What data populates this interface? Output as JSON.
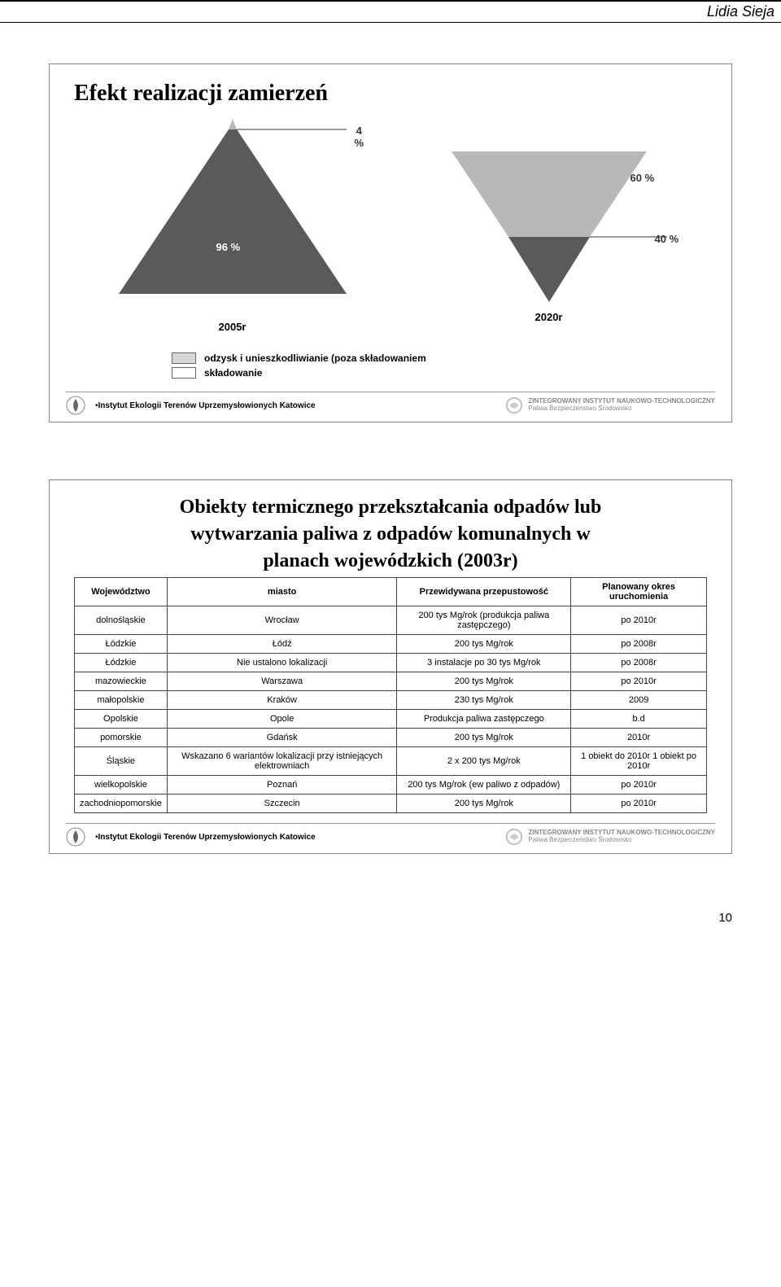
{
  "header": {
    "author": "Lidia Sieja"
  },
  "slide1": {
    "title": "Efekt realizacji zamierzeń",
    "triangles": {
      "left": {
        "year": "2005r",
        "top_pct": "4 %",
        "bottom_pct": "96 %",
        "top_color": "#b8b8b8",
        "bottom_color": "#5a5a5a"
      },
      "right": {
        "year": "2020r",
        "top_pct": "60 %",
        "bottom_pct": "40 %",
        "top_color": "#b8b8b8",
        "bottom_color": "#5a5a5a"
      }
    },
    "legend": {
      "item1": {
        "swatch_color": "#d8d8d8",
        "label": "odzysk i unieszkodliwianie (poza składowaniem"
      },
      "item2": {
        "swatch_color": "#ffffff",
        "label": "składowanie"
      }
    }
  },
  "slide2": {
    "title_line1": "Obiekty termicznego przekształcania odpadów lub",
    "title_line2": "wytwarzania paliwa z odpadów komunalnych w",
    "title_line3": "planach wojewódzkich (2003r)",
    "columns": [
      "Województwo",
      "miasto",
      "Przewidywana przepustowość",
      "Planowany okres uruchomienia"
    ],
    "rows": [
      [
        "dolnośląskie",
        "Wrocław",
        "200 tys Mg/rok (produkcja paliwa zastępczego)",
        "po 2010r"
      ],
      [
        "Łódzkie",
        "Łódź",
        "200 tys Mg/rok",
        "po 2008r"
      ],
      [
        "Łódzkie",
        "Nie ustalono lokalizacji",
        "3 instalacje po 30 tys Mg/rok",
        "po 2008r"
      ],
      [
        "mazowieckie",
        "Warszawa",
        "200 tys Mg/rok",
        "po 2010r"
      ],
      [
        "małopolskie",
        "Kraków",
        "230 tys Mg/rok",
        "2009"
      ],
      [
        "Opolskie",
        "Opole",
        "Produkcja paliwa zastępczego",
        "b.d"
      ],
      [
        "pomorskie",
        "Gdańsk",
        "200 tys Mg/rok",
        "2010r"
      ],
      [
        "Śląskie",
        "Wskazano 6 wariantów lokalizacji przy istniejących elektrowniach",
        "2 x 200 tys Mg/rok",
        "1 obiekt do 2010r 1 obiekt po 2010r"
      ],
      [
        "wielkopolskie",
        "Poznań",
        "200 tys Mg/rok (ew paliwo z odpadów)",
        "po 2010r"
      ],
      [
        "zachodniopomorskie",
        "Szczecin",
        "200 tys Mg/rok",
        "po 2010r"
      ]
    ]
  },
  "footer": {
    "left_text": "Instytut Ekologii Terenów Uprzemysłowionych Katowice",
    "right_line1": "ZINTEGROWANY INSTYTUT NAUKOWO-TECHNOLOGICZNY",
    "right_line2": "Paliwa Bezpieczeństwo Środowisko"
  },
  "pagenum": "10"
}
